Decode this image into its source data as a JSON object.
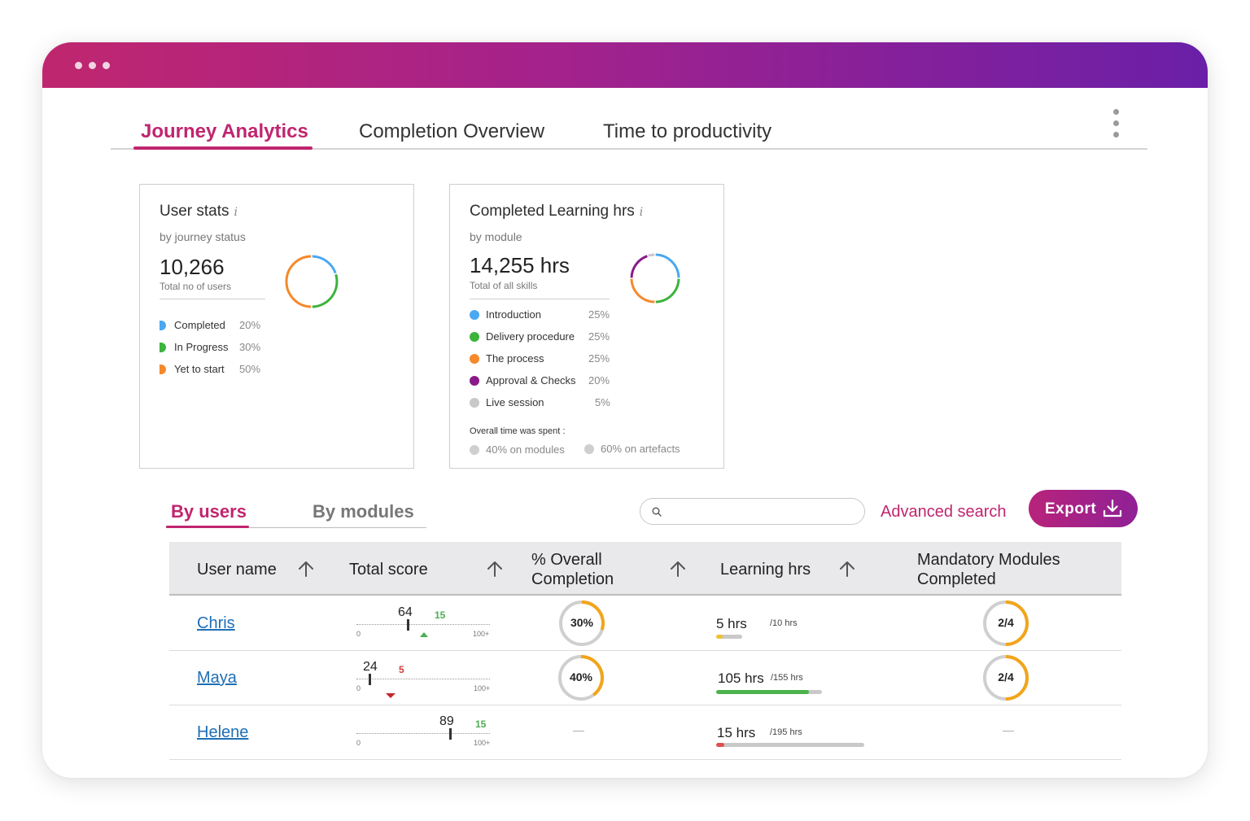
{
  "tabs": [
    "Journey Analytics",
    "Completion Overview",
    "Time to productivity"
  ],
  "user_stats": {
    "title": "User stats",
    "info": "i",
    "subtitle": "by journey status",
    "total": "10,266",
    "total_label": "Total no of users",
    "legend": [
      {
        "label": "Completed",
        "pct": "20%",
        "value": 20,
        "color": "#4aa8f0"
      },
      {
        "label": "In Progress",
        "pct": "30%",
        "value": 30,
        "color": "#3cb33c"
      },
      {
        "label": "Yet to start",
        "pct": "50%",
        "value": 50,
        "color": "#f5892b"
      }
    ]
  },
  "learning": {
    "title": "Completed Learning hrs",
    "info": "i",
    "subtitle": "by module",
    "total": "14,255 hrs",
    "total_label": "Total of all skills",
    "legend": [
      {
        "label": "Introduction",
        "pct": "25%",
        "value": 25,
        "color": "#4aa8f0"
      },
      {
        "label": "Delivery procedure",
        "pct": "25%",
        "value": 25,
        "color": "#3cb33c"
      },
      {
        "label": "The process",
        "pct": "25%",
        "value": 25,
        "color": "#f5892b"
      },
      {
        "label": "Approval & Checks",
        "pct": "20%",
        "value": 20,
        "color": "#8a1a8a"
      },
      {
        "label": "Live session",
        "pct": "5%",
        "value": 5,
        "color": "#c8c8c8"
      }
    ],
    "overall_label": "Overall time was spent :",
    "overall": [
      "40% on modules",
      "60% on artefacts"
    ]
  },
  "view_tabs": [
    "By users",
    "By modules"
  ],
  "search": {
    "placeholder": "",
    "value": ""
  },
  "advanced_search": "Advanced search",
  "export": "Export",
  "table": {
    "columns": {
      "user": "User name",
      "score": "Total score",
      "completion_1": "% Overall",
      "completion_2": "Completion",
      "learning": "Learning hrs",
      "mandatory_1": "Mandatory Modules",
      "mandatory_2": "Completed"
    },
    "scale_min": "0",
    "scale_max": "100+",
    "rows": [
      {
        "name": "Chris",
        "score": "64",
        "score_value": 64,
        "delta": "15",
        "delta_dir": "up",
        "completion": "30%",
        "completion_value": 0.3,
        "hrs": "5 hrs",
        "hrs_of": "/10 hrs",
        "hrs_fraction": 0.1,
        "hrs_color": "#f2c12e",
        "mandatory": "2/4",
        "mandatory_value": 0.5
      },
      {
        "name": "Maya",
        "score": "24",
        "score_value": 24,
        "delta": "5",
        "delta_dir": "down",
        "completion": "40%",
        "completion_value": 0.4,
        "hrs": "105 hrs",
        "hrs_of": "/155 hrs",
        "hrs_fraction": 0.877,
        "hrs_color": "#4bb34b",
        "mandatory": "2/4",
        "mandatory_value": 0.5
      },
      {
        "name": "Helene",
        "score": "89",
        "score_value": 89,
        "delta": "15",
        "delta_dir": "none",
        "completion": "—",
        "completion_value": null,
        "hrs": "15 hrs",
        "hrs_of": "/195 hrs",
        "hrs_fraction": 0.05,
        "hrs_color": "#e05050",
        "mandatory": "—",
        "mandatory_value": null
      }
    ]
  }
}
